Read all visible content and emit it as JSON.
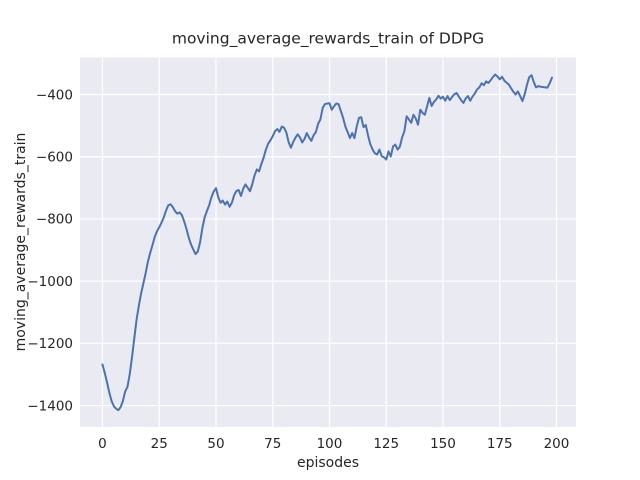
{
  "figure": {
    "background": "#ffffff"
  },
  "chart_data": {
    "type": "line",
    "title": "moving_average_rewards_train of DDPG",
    "xlabel": "episodes",
    "ylabel": "moving_average_rewards_train",
    "x_ticks": [
      0,
      25,
      50,
      75,
      100,
      125,
      150,
      175,
      200
    ],
    "y_ticks": [
      -400,
      -600,
      -800,
      -1000,
      -1200,
      -1400
    ],
    "xlim": [
      -9.9,
      208.6
    ],
    "ylim": [
      -1469,
      -281
    ],
    "grid": true,
    "legend": "none",
    "plot_background": "#eaeaf2",
    "grid_color": "#ffffff",
    "text_color": "#262626",
    "series": [
      {
        "name": "DDPG",
        "color": "#4c72b0",
        "x_start": 0,
        "x_step": 1,
        "values": [
          -1268,
          -1295,
          -1325,
          -1358,
          -1385,
          -1402,
          -1410,
          -1415,
          -1405,
          -1385,
          -1355,
          -1340,
          -1300,
          -1245,
          -1185,
          -1125,
          -1080,
          -1040,
          -1008,
          -975,
          -938,
          -910,
          -885,
          -858,
          -840,
          -827,
          -812,
          -795,
          -773,
          -756,
          -753,
          -762,
          -775,
          -783,
          -779,
          -788,
          -808,
          -832,
          -860,
          -882,
          -898,
          -913,
          -905,
          -875,
          -830,
          -795,
          -775,
          -756,
          -730,
          -712,
          -701,
          -730,
          -748,
          -741,
          -754,
          -744,
          -761,
          -748,
          -724,
          -710,
          -707,
          -726,
          -703,
          -689,
          -700,
          -711,
          -688,
          -660,
          -641,
          -647,
          -623,
          -603,
          -577,
          -558,
          -547,
          -534,
          -518,
          -511,
          -520,
          -503,
          -507,
          -522,
          -553,
          -571,
          -553,
          -539,
          -528,
          -538,
          -554,
          -543,
          -524,
          -538,
          -549,
          -531,
          -521,
          -494,
          -480,
          -443,
          -431,
          -429,
          -428,
          -449,
          -438,
          -429,
          -431,
          -453,
          -475,
          -503,
          -521,
          -540,
          -524,
          -540,
          -503,
          -475,
          -473,
          -505,
          -498,
          -532,
          -560,
          -577,
          -589,
          -593,
          -577,
          -598,
          -602,
          -609,
          -583,
          -599,
          -567,
          -561,
          -577,
          -568,
          -538,
          -518,
          -470,
          -480,
          -491,
          -465,
          -477,
          -497,
          -449,
          -459,
          -465,
          -438,
          -411,
          -437,
          -424,
          -416,
          -404,
          -413,
          -407,
          -420,
          -405,
          -418,
          -408,
          -399,
          -395,
          -407,
          -418,
          -427,
          -413,
          -405,
          -420,
          -407,
          -397,
          -384,
          -377,
          -364,
          -370,
          -358,
          -363,
          -354,
          -344,
          -336,
          -342,
          -351,
          -343,
          -355,
          -362,
          -368,
          -380,
          -391,
          -400,
          -390,
          -405,
          -421,
          -399,
          -369,
          -344,
          -338,
          -360,
          -377,
          -373,
          -375,
          -376,
          -377,
          -378,
          -364,
          -346
        ]
      }
    ]
  }
}
